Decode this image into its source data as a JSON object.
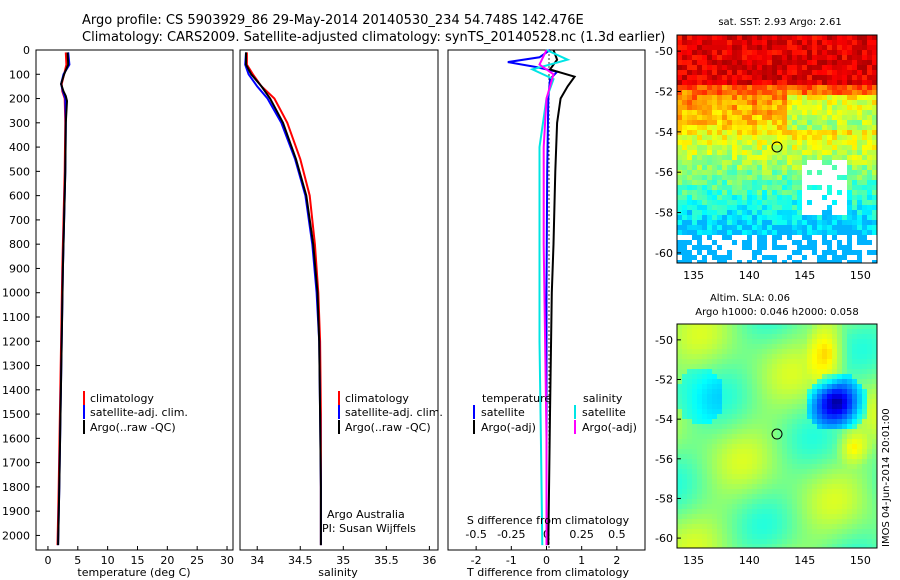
{
  "header": {
    "line1": "Argo profile: CS 5903929_86 29-May-2014 20140530_234 54.748S 142.476E",
    "line2": "Climatology: CARS2009. Satellite-adjusted climatology: synTS_20140528.nc (1.3d earlier)"
  },
  "colors": {
    "climatology": "#ff0000",
    "satellite": "#0000ff",
    "argo": "#000000",
    "t_satellite": "#0000ff",
    "s_satellite": "#00e5e5",
    "s_argo": "#ff00ff"
  },
  "chart_data": [
    {
      "type": "line",
      "xlabel": "temperature (deg C)",
      "xticks": [
        "0",
        "5",
        "10",
        "15",
        "20",
        "25",
        "30"
      ],
      "yticks": [
        "0",
        "100",
        "200",
        "300",
        "400",
        "500",
        "600",
        "700",
        "800",
        "900",
        "1000",
        "1100",
        "1200",
        "1300",
        "1400",
        "1500",
        "1600",
        "1700",
        "1800",
        "1900",
        "2000"
      ],
      "xlim": [
        -2,
        31
      ],
      "ylim": [
        2060,
        0
      ],
      "legend": [
        "climatology",
        "satellite-adj. clim.",
        "Argo(..raw -QC)"
      ],
      "series": [
        {
          "name": "climatology",
          "color": "#ff0000",
          "points": [
            [
              3.0,
              10
            ],
            [
              3.1,
              60
            ],
            [
              2.7,
              100
            ],
            [
              2.3,
              140
            ],
            [
              2.4,
              170
            ],
            [
              2.8,
              200
            ],
            [
              2.9,
              300
            ],
            [
              2.8,
              500
            ],
            [
              2.6,
              700
            ],
            [
              2.4,
              900
            ],
            [
              2.2,
              1200
            ],
            [
              2.0,
              1500
            ],
            [
              1.8,
              1800
            ],
            [
              1.6,
              2040
            ]
          ]
        },
        {
          "name": "satellite-adj. clim.",
          "color": "#0000ff",
          "points": [
            [
              3.4,
              10
            ],
            [
              3.6,
              60
            ],
            [
              2.6,
              100
            ],
            [
              2.2,
              140
            ],
            [
              2.5,
              170
            ],
            [
              2.9,
              200
            ],
            [
              3.0,
              300
            ],
            [
              2.9,
              500
            ],
            [
              2.7,
              700
            ],
            [
              2.5,
              900
            ],
            [
              2.3,
              1200
            ],
            [
              2.1,
              1500
            ],
            [
              1.9,
              1800
            ],
            [
              1.7,
              2040
            ]
          ]
        },
        {
          "name": "Argo(..raw -QC)",
          "color": "#000000",
          "points": [
            [
              3.3,
              10
            ],
            [
              3.4,
              60
            ],
            [
              2.7,
              100
            ],
            [
              2.2,
              140
            ],
            [
              2.6,
              170
            ],
            [
              3.0,
              190
            ],
            [
              3.2,
              210
            ],
            [
              3.0,
              300
            ],
            [
              2.9,
              500
            ],
            [
              2.7,
              700
            ],
            [
              2.5,
              900
            ],
            [
              2.3,
              1200
            ],
            [
              2.1,
              1500
            ],
            [
              1.9,
              1800
            ],
            [
              1.7,
              2040
            ]
          ]
        }
      ]
    },
    {
      "type": "line",
      "xlabel": "salinity",
      "xticks": [
        "34",
        "34.5",
        "35",
        "35.5",
        "36"
      ],
      "xlim": [
        33.8,
        36.1
      ],
      "ylim": [
        2060,
        0
      ],
      "legend": [
        "climatology",
        "satellite-adj. clim.",
        "Argo(..raw -QC)"
      ],
      "annotations": [
        "Argo Australia",
        "PI: Susan Wijffels"
      ],
      "series": [
        {
          "name": "climatology",
          "color": "#ff0000",
          "points": [
            [
              33.88,
              10
            ],
            [
              33.88,
              60
            ],
            [
              33.95,
              100
            ],
            [
              34.05,
              150
            ],
            [
              34.2,
              200
            ],
            [
              34.35,
              300
            ],
            [
              34.5,
              450
            ],
            [
              34.61,
              600
            ],
            [
              34.67,
              800
            ],
            [
              34.71,
              1000
            ],
            [
              34.73,
              1200
            ],
            [
              34.74,
              1500
            ],
            [
              34.74,
              1800
            ],
            [
              34.74,
              2040
            ]
          ]
        },
        {
          "name": "satellite-adj. clim.",
          "color": "#0000ff",
          "points": [
            [
              33.87,
              10
            ],
            [
              33.86,
              60
            ],
            [
              33.9,
              100
            ],
            [
              34.0,
              150
            ],
            [
              34.12,
              200
            ],
            [
              34.28,
              300
            ],
            [
              34.44,
              450
            ],
            [
              34.56,
              600
            ],
            [
              34.64,
              800
            ],
            [
              34.69,
              1000
            ],
            [
              34.72,
              1200
            ],
            [
              34.73,
              1500
            ],
            [
              34.74,
              1800
            ],
            [
              34.74,
              2040
            ]
          ]
        },
        {
          "name": "Argo(..raw -QC)",
          "color": "#000000",
          "points": [
            [
              33.87,
              10
            ],
            [
              33.87,
              60
            ],
            [
              33.93,
              100
            ],
            [
              34.05,
              150
            ],
            [
              34.15,
              200
            ],
            [
              34.3,
              300
            ],
            [
              34.45,
              450
            ],
            [
              34.57,
              600
            ],
            [
              34.65,
              800
            ],
            [
              34.7,
              1000
            ],
            [
              34.72,
              1200
            ],
            [
              34.73,
              1500
            ],
            [
              34.74,
              1800
            ],
            [
              34.74,
              2040
            ]
          ]
        }
      ]
    },
    {
      "type": "line",
      "xlabel": "T difference from climatology",
      "xlabel_top": "S difference from climatology",
      "xticks": [
        "-2",
        "-1",
        "0",
        "1",
        "2"
      ],
      "xticks_top": [
        "-0.5",
        "-0.25",
        "0",
        "0.25",
        "0.5"
      ],
      "xlim": [
        -2.8,
        2.8
      ],
      "ylim": [
        2060,
        0
      ],
      "legend_left": [
        "temperature",
        "satellite",
        "Argo(-adj)"
      ],
      "legend_right": [
        "salinity",
        "satellite",
        "Argo(-adj)"
      ],
      "series": [
        {
          "name": "satellite",
          "group": "temperature",
          "color": "#0000ff",
          "points": [
            [
              0.1,
              0
            ],
            [
              -0.2,
              30
            ],
            [
              -1.1,
              50
            ],
            [
              -0.3,
              70
            ],
            [
              0.3,
              90
            ],
            [
              0.1,
              120
            ],
            [
              0.05,
              200
            ],
            [
              0.02,
              500
            ],
            [
              0.0,
              1000
            ],
            [
              0.0,
              1500
            ],
            [
              0.0,
              2040
            ]
          ]
        },
        {
          "name": "Argo(-adj)",
          "group": "temperature",
          "color": "#000000",
          "points": [
            [
              0.2,
              0
            ],
            [
              0.3,
              40
            ],
            [
              0.1,
              80
            ],
            [
              0.8,
              110
            ],
            [
              0.6,
              150
            ],
            [
              0.4,
              200
            ],
            [
              0.3,
              300
            ],
            [
              0.25,
              500
            ],
            [
              0.2,
              800
            ],
            [
              0.15,
              1000
            ],
            [
              0.1,
              1500
            ],
            [
              0.05,
              2040
            ]
          ]
        },
        {
          "name": "satellite",
          "group": "salinity",
          "color": "#00e5e5",
          "points": [
            [
              0.0,
              0
            ],
            [
              0.15,
              40
            ],
            [
              -0.1,
              80
            ],
            [
              0.05,
              120
            ],
            [
              0.0,
              200
            ],
            [
              -0.05,
              400
            ],
            [
              -0.05,
              800
            ],
            [
              -0.05,
              1200
            ],
            [
              -0.04,
              1600
            ],
            [
              -0.03,
              2040
            ]
          ]
        },
        {
          "name": "Argo(-adj)",
          "group": "salinity",
          "color": "#ff00ff",
          "points": [
            [
              0.0,
              0
            ],
            [
              -0.05,
              60
            ],
            [
              0.05,
              100
            ],
            [
              0.0,
              200
            ],
            [
              -0.02,
              400
            ],
            [
              -0.02,
              800
            ],
            [
              -0.01,
              1200
            ],
            [
              0.0,
              1600
            ],
            [
              0.0,
              2040
            ]
          ]
        }
      ]
    },
    {
      "type": "heatmap",
      "title": "sat. SST: 2.93 Argo: 2.61",
      "xticks": [
        "135",
        "140",
        "145",
        "150"
      ],
      "yticks": [
        "-50",
        "-52",
        "-54",
        "-56",
        "-58",
        "-60"
      ],
      "xlim": [
        133.5,
        151.5
      ],
      "ylim": [
        -60.5,
        -49.2
      ],
      "marker": [
        142.5,
        -54.75
      ]
    },
    {
      "type": "heatmap",
      "title": "Altim. SLA: 0.06",
      "subtitle": "Argo h1000: 0.046 h2000: 0.058",
      "xticks": [
        "135",
        "140",
        "145",
        "150"
      ],
      "yticks": [
        "-50",
        "-52",
        "-54",
        "-56",
        "-58",
        "-60"
      ],
      "xlim": [
        133.5,
        151.5
      ],
      "ylim": [
        -60.5,
        -49.2
      ],
      "marker": [
        142.5,
        -54.75
      ]
    }
  ],
  "side_label": "IMOS 04-Jun-2014 20:01:00"
}
